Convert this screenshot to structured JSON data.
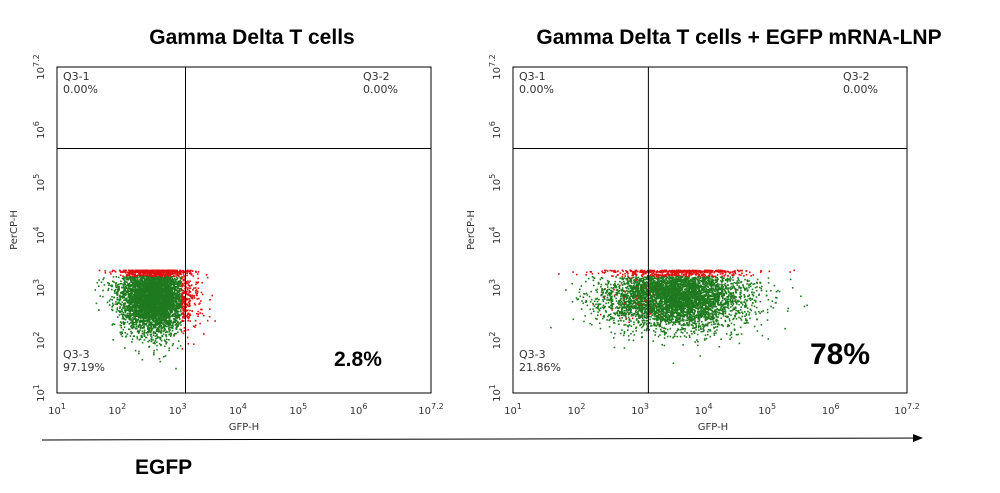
{
  "colors": {
    "events_main": "#1f7a1f",
    "events_high": "#e01010",
    "axis": "#000000"
  },
  "egfp_arrow_label": "EGFP",
  "chart_data": [
    {
      "type": "scatter",
      "title": "Gamma Delta T cells",
      "xlabel": "GFP-H",
      "ylabel": "PerCP-H",
      "scale": "log",
      "xlim": [
        10,
        15848932
      ],
      "ylim": [
        10,
        15848932
      ],
      "x_ticks": [
        {
          "base": "10",
          "exp": "1"
        },
        {
          "base": "10",
          "exp": "2"
        },
        {
          "base": "10",
          "exp": "3"
        },
        {
          "base": "10",
          "exp": "4"
        },
        {
          "base": "10",
          "exp": "5"
        },
        {
          "base": "10",
          "exp": "6"
        },
        {
          "base": "10",
          "exp": "7.2"
        }
      ],
      "y_ticks": [
        {
          "base": "10",
          "exp": "1"
        },
        {
          "base": "10",
          "exp": "2"
        },
        {
          "base": "10",
          "exp": "3"
        },
        {
          "base": "10",
          "exp": "4"
        },
        {
          "base": "10",
          "exp": "5"
        },
        {
          "base": "10",
          "exp": "6"
        },
        {
          "base": "10",
          "exp": "7.2"
        }
      ],
      "gate": {
        "x": 1350,
        "y": 446700
      },
      "quadrants": {
        "q1": {
          "name": "Q3-1",
          "pct": "0.00%"
        },
        "q2": {
          "name": "Q3-2",
          "pct": "0.00%"
        },
        "q3": {
          "name": "Q3-3",
          "pct": "97.19%"
        }
      },
      "annotation": "2.8%",
      "population": {
        "center_log_x": 2.6,
        "center_log_y": 2.85,
        "spread_log_x": 0.28,
        "spread_log_y": 0.34,
        "ceiling_log_y": 3.35
      }
    },
    {
      "type": "scatter",
      "title": "Gamma Delta T cells + EGFP mRNA-LNP",
      "xlabel": "GFP-H",
      "ylabel": "PerCP-H",
      "scale": "log",
      "xlim": [
        10,
        15848932
      ],
      "ylim": [
        10,
        15848932
      ],
      "x_ticks": [
        {
          "base": "10",
          "exp": "1"
        },
        {
          "base": "10",
          "exp": "2"
        },
        {
          "base": "10",
          "exp": "3"
        },
        {
          "base": "10",
          "exp": "4"
        },
        {
          "base": "10",
          "exp": "5"
        },
        {
          "base": "10",
          "exp": "6"
        },
        {
          "base": "10",
          "exp": "7.2"
        }
      ],
      "y_ticks": [
        {
          "base": "10",
          "exp": "1"
        },
        {
          "base": "10",
          "exp": "2"
        },
        {
          "base": "10",
          "exp": "3"
        },
        {
          "base": "10",
          "exp": "4"
        },
        {
          "base": "10",
          "exp": "5"
        },
        {
          "base": "10",
          "exp": "6"
        },
        {
          "base": "10",
          "exp": "7.2"
        }
      ],
      "gate": {
        "x": 1350,
        "y": 446700
      },
      "quadrants": {
        "q1": {
          "name": "Q3-1",
          "pct": "0.00%"
        },
        "q2": {
          "name": "Q3-2",
          "pct": "0.00%"
        },
        "q3": {
          "name": "Q3-3",
          "pct": "21.86%"
        }
      },
      "annotation": "78%",
      "population": {
        "center_log_x": 3.55,
        "center_log_y": 2.85,
        "spread_log_x": 0.55,
        "spread_log_y": 0.3,
        "ceiling_log_y": 3.35
      }
    }
  ]
}
